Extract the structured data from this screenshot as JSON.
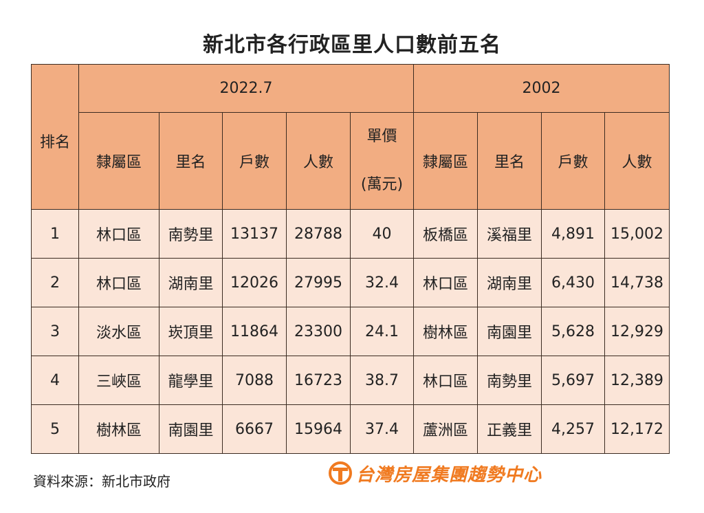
{
  "title": "新北市各行政區里人口數前五名",
  "header": {
    "rank": "排名",
    "year_a": "2022.7",
    "year_b": "2002",
    "cols_a": [
      "隸屬區",
      "里名",
      "戶數",
      "人數"
    ],
    "price_line1": "單價",
    "price_line2": "(萬元)",
    "cols_b": [
      "隸屬區",
      "里名",
      "戶數",
      "人數"
    ]
  },
  "rows": [
    {
      "rank": "1",
      "a_district": "林口區",
      "a_li": "南勢里",
      "a_households": "13137",
      "a_pop": "28788",
      "a_price": "40",
      "b_district": "板橋區",
      "b_li": "溪福里",
      "b_households": "4,891",
      "b_pop": "15,002"
    },
    {
      "rank": "2",
      "a_district": "林口區",
      "a_li": "湖南里",
      "a_households": "12026",
      "a_pop": "27995",
      "a_price": "32.4",
      "b_district": "林口區",
      "b_li": "湖南里",
      "b_households": "6,430",
      "b_pop": "14,738"
    },
    {
      "rank": "3",
      "a_district": "淡水區",
      "a_li": "崁頂里",
      "a_households": "11864",
      "a_pop": "23300",
      "a_price": "24.1",
      "b_district": "樹林區",
      "b_li": "南園里",
      "b_households": "5,628",
      "b_pop": "12,929"
    },
    {
      "rank": "4",
      "a_district": "三峽區",
      "a_li": "龍學里",
      "a_households": "7088",
      "a_pop": "16723",
      "a_price": "38.7",
      "b_district": "林口區",
      "b_li": "南勢里",
      "b_households": "5,697",
      "b_pop": "12,389"
    },
    {
      "rank": "5",
      "a_district": "樹林區",
      "a_li": "南園里",
      "a_households": "6667",
      "a_pop": "15964",
      "a_price": "37.4",
      "b_district": "蘆洲區",
      "b_li": "正義里",
      "b_households": "4,257",
      "b_pop": "12,172"
    }
  ],
  "footer": {
    "source": "資料來源：新北市政府",
    "brand": "台灣房屋集團趨勢中心",
    "brand_color": "#f07a20"
  },
  "colors": {
    "header_bg": "#f2ad82",
    "row_bg": "#fbe5d8"
  }
}
